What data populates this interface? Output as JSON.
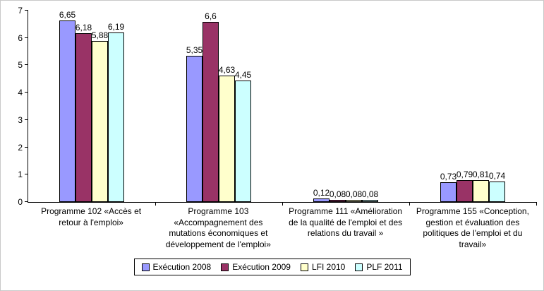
{
  "chart_data": {
    "type": "bar",
    "title": "",
    "xlabel": "",
    "ylabel": "",
    "ylim": [
      0,
      7
    ],
    "yticks": [
      "0",
      "1",
      "2",
      "3",
      "4",
      "5",
      "6",
      "7"
    ],
    "grid": false,
    "legend_position": "bottom",
    "categories": [
      "Programme 102 «Accès et retour à l'emploi»",
      "Programme 103 «Accompagnement des mutations économiques et développement de l'emploi»",
      "Programme 111 «Amélioration de la qualité de l'emploi et des relations du travail »",
      "Programme 155 «Conception, gestion et évaluation des politiques de l'emploi et du travail»"
    ],
    "series": [
      {
        "name": "Exécution 2008",
        "color": "#9999FF",
        "values": [
          6.65,
          5.35,
          0.12,
          0.73
        ],
        "labels": [
          "6,65",
          "5,35",
          "0,12",
          "0,73"
        ]
      },
      {
        "name": "Exécution 2009",
        "color": "#993366",
        "values": [
          6.18,
          6.6,
          0.08,
          0.79
        ],
        "labels": [
          "6,18",
          "6,6",
          "0,08",
          "0,79"
        ]
      },
      {
        "name": "LFI 2010",
        "color": "#FFFFCC",
        "values": [
          5.88,
          4.63,
          0.08,
          0.81
        ],
        "labels": [
          "5,88",
          "4,63",
          "0,08",
          "0,81"
        ]
      },
      {
        "name": "PLF 2011",
        "color": "#CCFFFF",
        "values": [
          6.19,
          4.45,
          0.08,
          0.74
        ],
        "labels": [
          "6,19",
          "4,45",
          "0,08",
          "0,74"
        ]
      }
    ]
  }
}
